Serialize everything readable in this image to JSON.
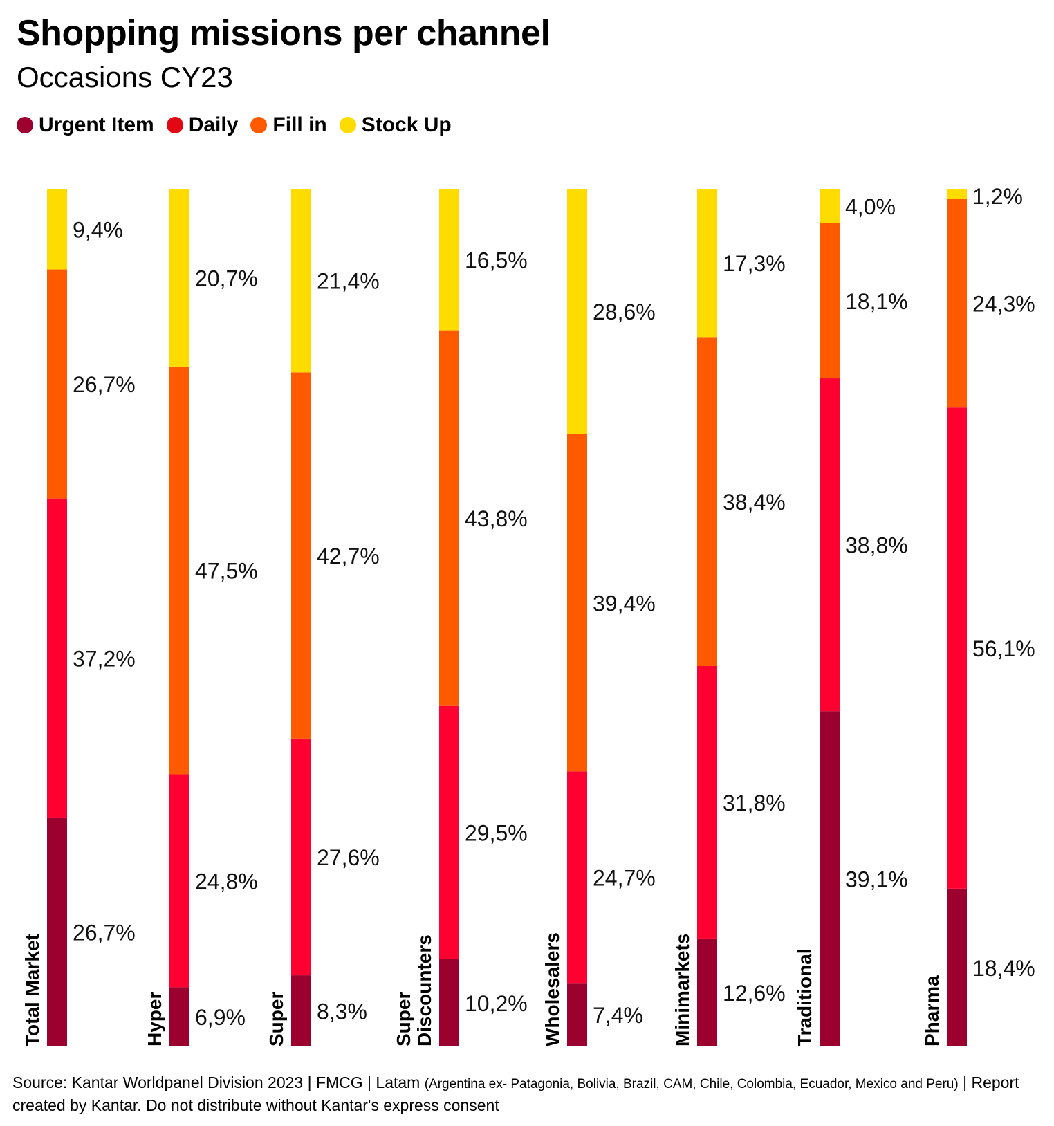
{
  "title": "Shopping missions per channel",
  "subtitle": "Occasions CY23",
  "legend": [
    {
      "label": "Urgent Item",
      "color": "#9b002f"
    },
    {
      "label": "Daily",
      "color": "#e30613"
    },
    {
      "label": "Fill in",
      "color": "#ff5a00"
    },
    {
      "label": "Stock Up",
      "color": "#ffdc00"
    }
  ],
  "chart_data": {
    "type": "bar",
    "stacked": true,
    "orientation": "vertical",
    "title": "Shopping missions per channel",
    "subtitle": "Occasions CY23",
    "categories": [
      [
        "Total Market"
      ],
      [
        "Hyper"
      ],
      [
        "Super"
      ],
      [
        "Super",
        "Discounters"
      ],
      [
        "Wholesalers"
      ],
      [
        "Minimarkets"
      ],
      [
        "Traditional"
      ],
      [
        "Pharma"
      ]
    ],
    "series": [
      {
        "name": "Urgent Item",
        "color": "#9b002f",
        "values": [
          26.7,
          6.9,
          8.3,
          10.2,
          7.4,
          12.6,
          39.1,
          18.4
        ],
        "labels": [
          "26,7%",
          "6,9%",
          "8,3%",
          "10,2%",
          "7,4%",
          "12,6%",
          "39,1%",
          "18,4%"
        ]
      },
      {
        "name": "Daily",
        "color": "#ff0030",
        "values": [
          37.2,
          24.8,
          27.6,
          29.5,
          24.7,
          31.8,
          38.8,
          56.1
        ],
        "labels": [
          "37,2%",
          "24,8%",
          "27,6%",
          "29,5%",
          "24,7%",
          "31,8%",
          "38,8%",
          "56,1%"
        ]
      },
      {
        "name": "Fill in",
        "color": "#ff5a00",
        "values": [
          26.7,
          47.5,
          42.7,
          43.8,
          39.4,
          38.4,
          18.1,
          24.3
        ],
        "labels": [
          "26,7%",
          "47,5%",
          "42,7%",
          "43,8%",
          "39,4%",
          "38,4%",
          "18,1%",
          "24,3%"
        ]
      },
      {
        "name": "Stock Up",
        "color": "#ffdc00",
        "values": [
          9.4,
          20.7,
          21.4,
          16.5,
          28.6,
          17.3,
          4.0,
          1.2
        ],
        "labels": [
          "9,4%",
          "20,7%",
          "21,4%",
          "16,5%",
          "28,6%",
          "17,3%",
          "4,0%",
          "1,2%"
        ]
      }
    ],
    "ylim": [
      0,
      100
    ],
    "grid": false,
    "legend_position": "top-left"
  },
  "source": {
    "main": "Source: Kantar Worldpanel Division 2023 | FMCG | Latam ",
    "countries": "(Argentina ex- Patagonia, Bolivia, Brazil, CAM, Chile, Colombia, Ecuador, Mexico and Peru)",
    "tail": " | Report created by Kantar. Do not distribute without Kantar's express consent"
  }
}
